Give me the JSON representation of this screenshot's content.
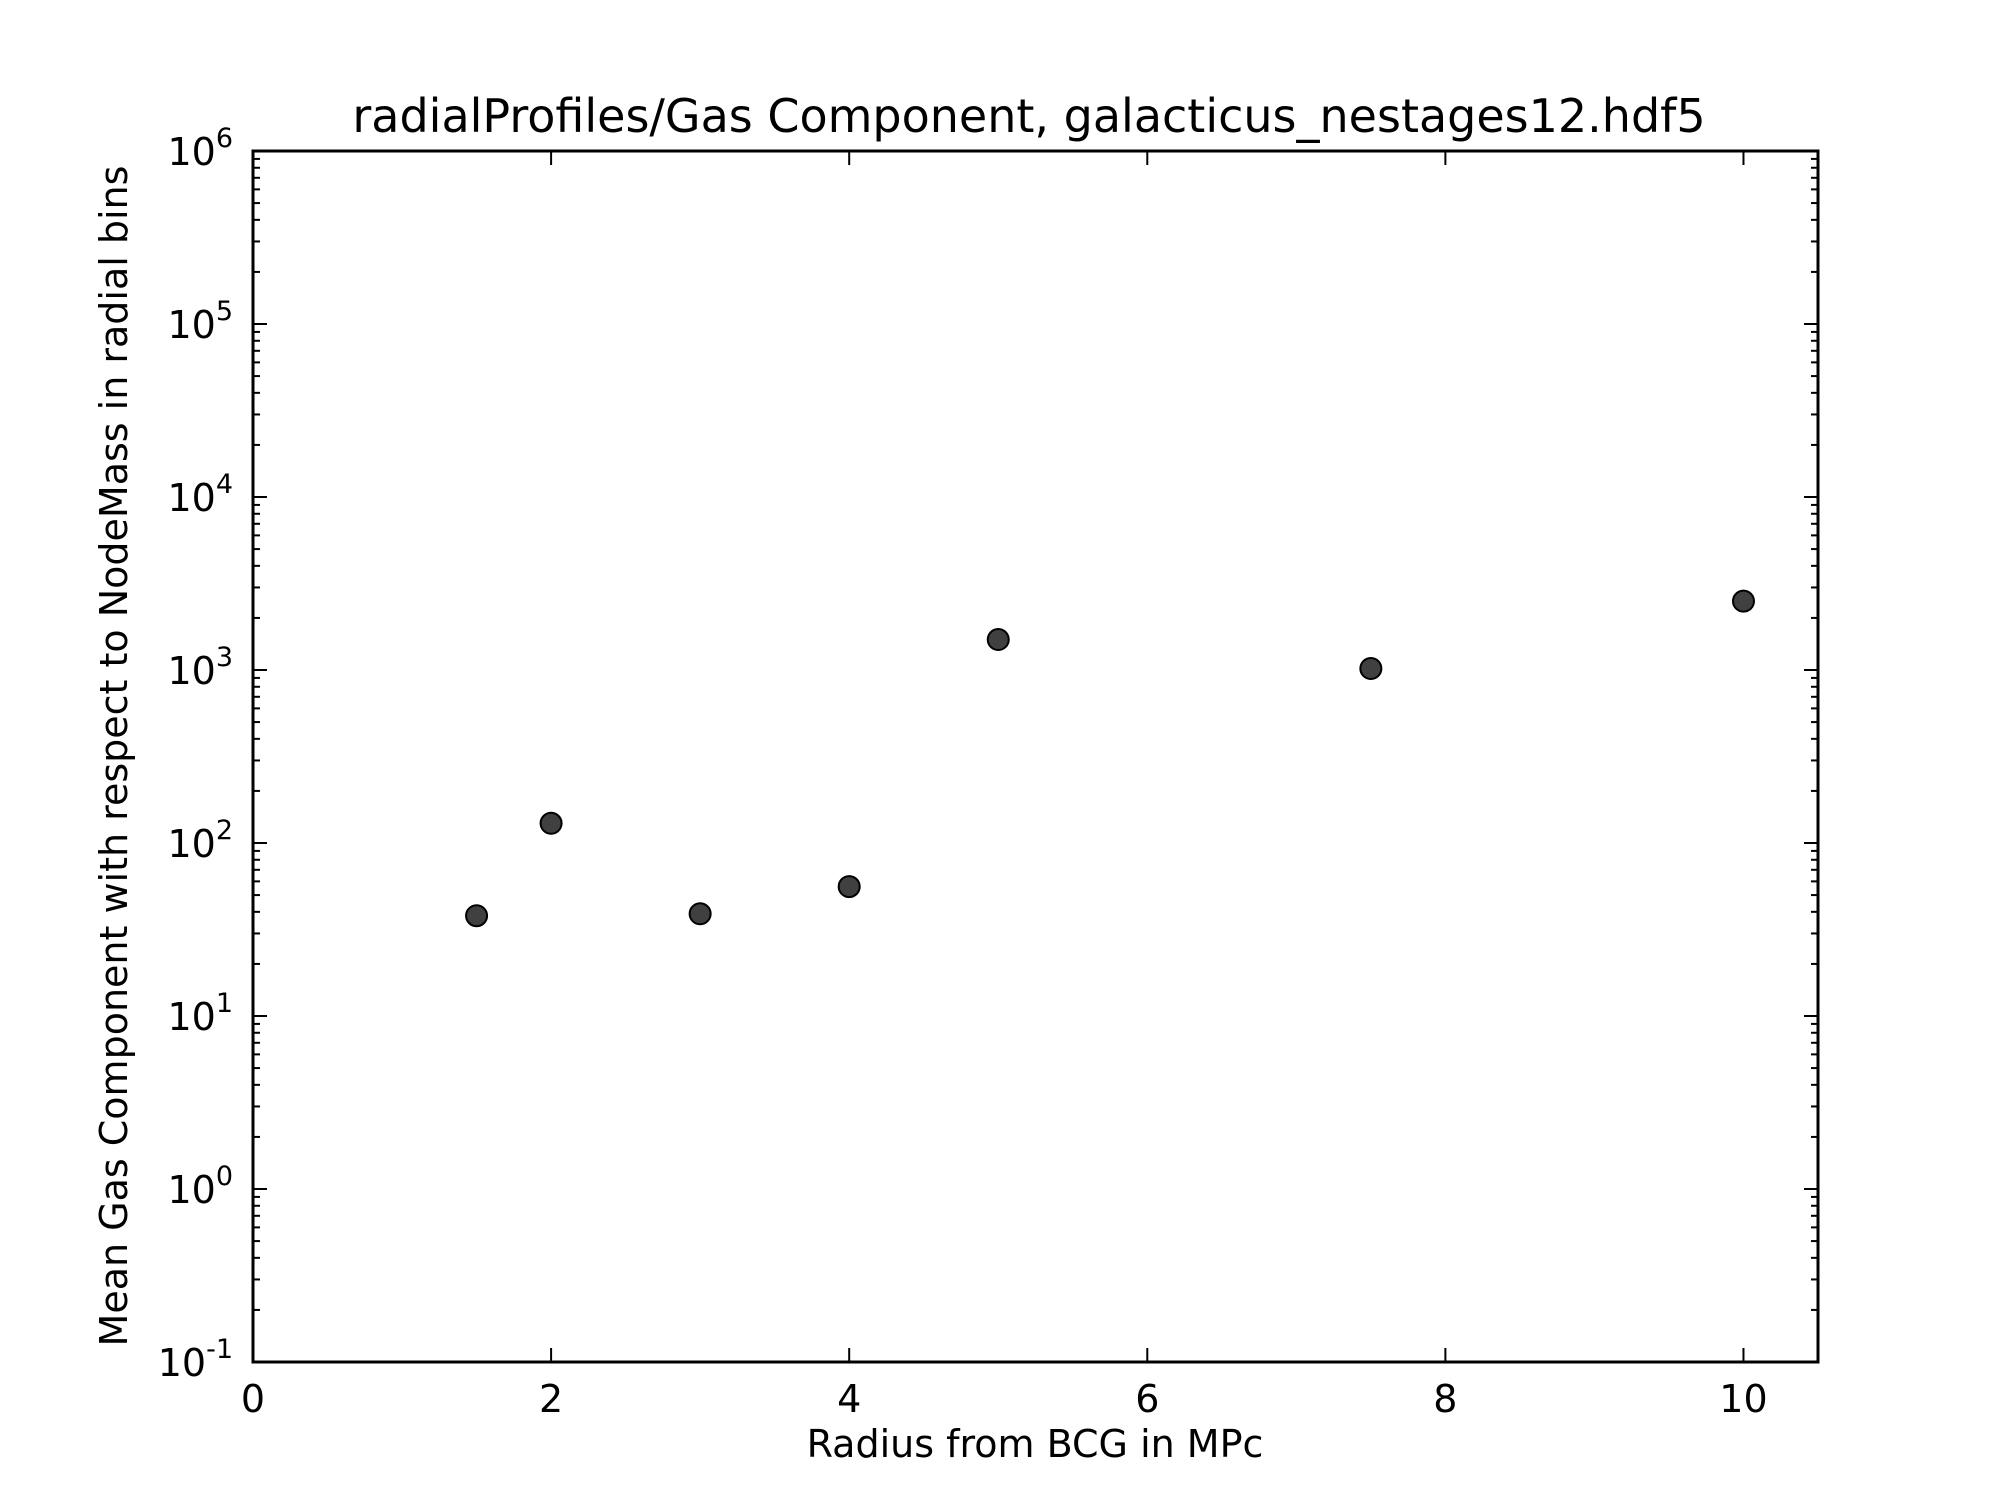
{
  "chart_data": {
    "type": "scatter",
    "title": "radialProfiles/Gas Component, galacticus_nestages12.hdf5",
    "xlabel": "Radius from BCG in MPc",
    "ylabel": "Mean Gas Component with respect to NodeMass in radial bins",
    "xlim": [
      0,
      10.5
    ],
    "ylim": [
      0.1,
      1000000
    ],
    "yscale": "log",
    "grid": false,
    "x_ticks": [
      0,
      2,
      4,
      6,
      8,
      10
    ],
    "x_tick_labels": [
      "0",
      "2",
      "4",
      "6",
      "8",
      "10"
    ],
    "y_ticks": [
      0.1,
      1,
      10,
      100,
      1000,
      10000,
      100000,
      1000000
    ],
    "y_tick_labels": [
      {
        "base": "10",
        "exp": "-1"
      },
      {
        "base": "10",
        "exp": "0"
      },
      {
        "base": "10",
        "exp": "1"
      },
      {
        "base": "10",
        "exp": "2"
      },
      {
        "base": "10",
        "exp": "3"
      },
      {
        "base": "10",
        "exp": "4"
      },
      {
        "base": "10",
        "exp": "5"
      },
      {
        "base": "10",
        "exp": "6"
      }
    ],
    "marker_color": "#404040",
    "series": [
      {
        "x": [
          1.5,
          2,
          3,
          4,
          5,
          7.5,
          10
        ],
        "y": [
          38,
          130,
          39,
          56,
          1500,
          1020,
          2500
        ]
      }
    ]
  }
}
